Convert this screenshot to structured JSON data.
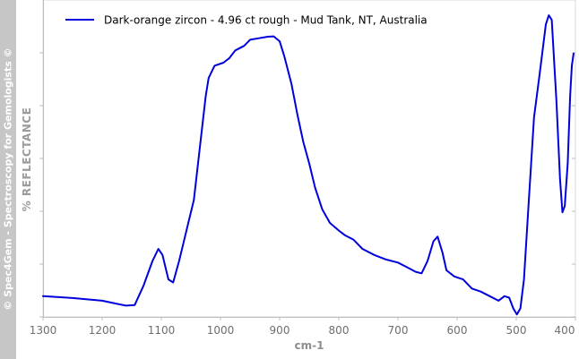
{
  "watermark": "© Spec4Gem - Spectroscopy for Gemologists ©",
  "chart_data": {
    "type": "line",
    "title": "",
    "xlabel": "cm-1",
    "ylabel": "% REFLECTANCE",
    "xlim": [
      1300,
      400
    ],
    "x_reversed": true,
    "x_ticks": [
      "1300",
      "1200",
      "1100",
      "1000",
      "900",
      "800",
      "700",
      "600",
      "500",
      "400"
    ],
    "y_ticks_labeled": false,
    "grid": false,
    "legend_position": "top-left",
    "series": [
      {
        "name": "Dark-orange zircon - 4.96 ct rough - Mud Tank, NT, Australia",
        "color": "#0000dd",
        "points": [
          [
            1300,
            6.5
          ],
          [
            1250,
            5.9
          ],
          [
            1200,
            5.0
          ],
          [
            1160,
            3.4
          ],
          [
            1145,
            3.6
          ],
          [
            1130,
            10.0
          ],
          [
            1115,
            18.0
          ],
          [
            1105,
            22.0
          ],
          [
            1098,
            20.0
          ],
          [
            1088,
            12.0
          ],
          [
            1080,
            11.0
          ],
          [
            1070,
            18.0
          ],
          [
            1060,
            26.0
          ],
          [
            1045,
            38.0
          ],
          [
            1035,
            55.0
          ],
          [
            1025,
            72.0
          ],
          [
            1020,
            78.0
          ],
          [
            1010,
            82.0
          ],
          [
            995,
            83.0
          ],
          [
            985,
            84.5
          ],
          [
            975,
            87.0
          ],
          [
            960,
            88.5
          ],
          [
            950,
            90.5
          ],
          [
            935,
            91.0
          ],
          [
            920,
            91.5
          ],
          [
            910,
            91.6
          ],
          [
            900,
            90.0
          ],
          [
            892,
            85.0
          ],
          [
            880,
            76.0
          ],
          [
            870,
            66.0
          ],
          [
            860,
            57.0
          ],
          [
            850,
            50.0
          ],
          [
            840,
            42.0
          ],
          [
            828,
            35.0
          ],
          [
            815,
            30.5
          ],
          [
            800,
            28.0
          ],
          [
            790,
            26.5
          ],
          [
            775,
            25.0
          ],
          [
            760,
            22.0
          ],
          [
            740,
            20.0
          ],
          [
            720,
            18.5
          ],
          [
            700,
            17.5
          ],
          [
            685,
            16.0
          ],
          [
            670,
            14.5
          ],
          [
            660,
            14.0
          ],
          [
            650,
            18.0
          ],
          [
            640,
            24.5
          ],
          [
            633,
            26.0
          ],
          [
            625,
            21.0
          ],
          [
            618,
            15.0
          ],
          [
            605,
            13.0
          ],
          [
            590,
            12.0
          ],
          [
            575,
            9.0
          ],
          [
            560,
            8.0
          ],
          [
            545,
            6.5
          ],
          [
            530,
            5.0
          ],
          [
            520,
            6.5
          ],
          [
            512,
            6.0
          ],
          [
            505,
            2.5
          ],
          [
            499,
            0.5
          ],
          [
            493,
            2.5
          ],
          [
            487,
            12.0
          ],
          [
            480,
            34.0
          ],
          [
            470,
            65.0
          ],
          [
            460,
            80.0
          ],
          [
            450,
            95.5
          ],
          [
            445,
            98.5
          ],
          [
            440,
            97.0
          ],
          [
            432,
            70.0
          ],
          [
            426,
            45.0
          ],
          [
            422,
            34.0
          ],
          [
            418,
            36.0
          ],
          [
            413,
            50.0
          ],
          [
            409,
            72.0
          ],
          [
            406,
            82.0
          ],
          [
            403,
            86.0
          ]
        ]
      }
    ]
  }
}
